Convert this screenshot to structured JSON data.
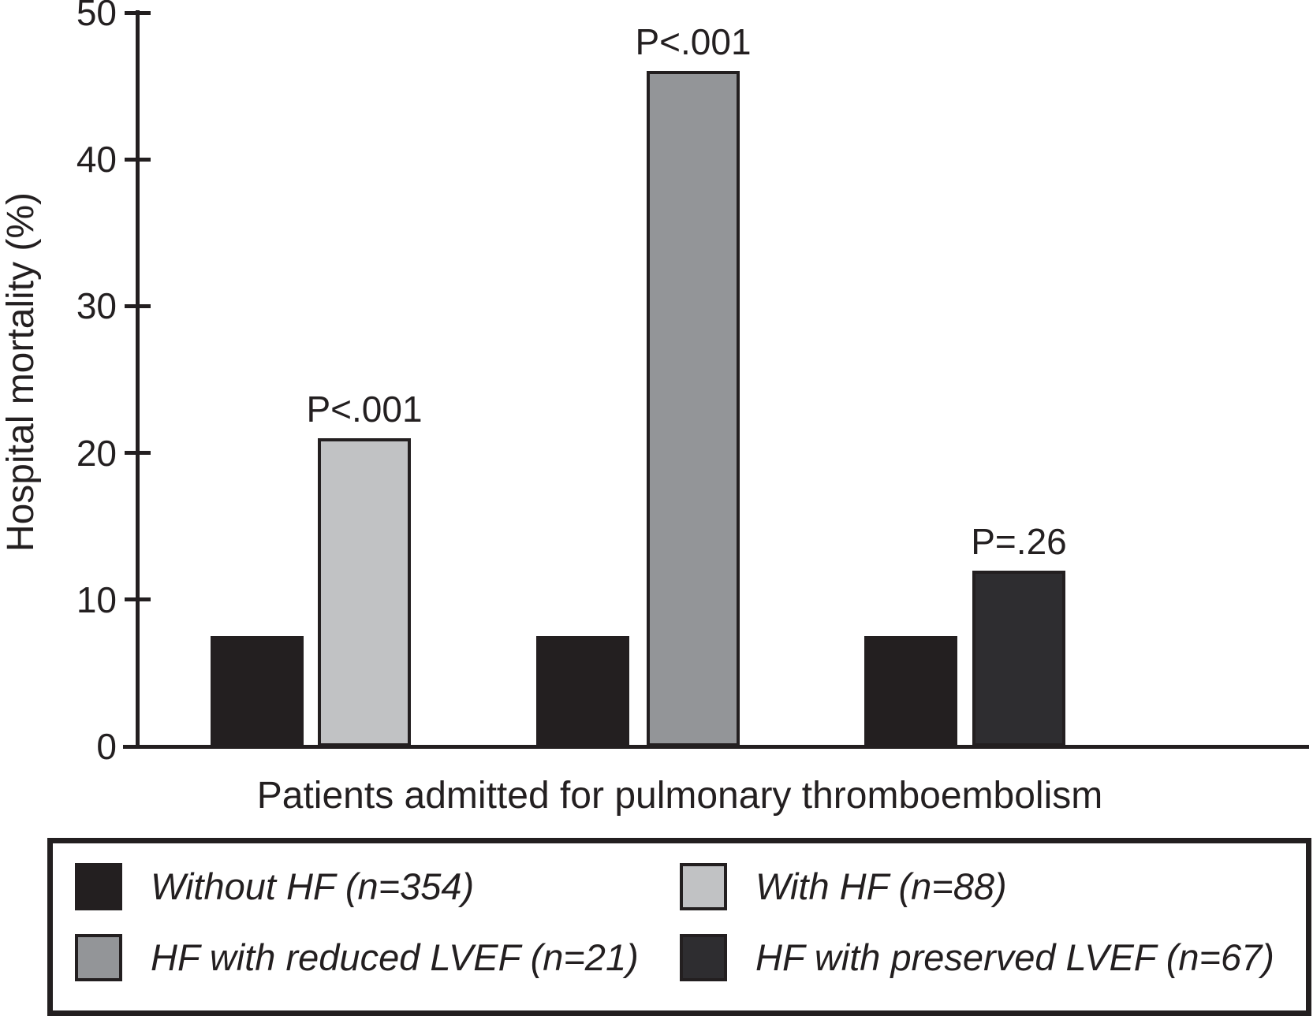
{
  "chart_data": {
    "type": "bar",
    "title": "",
    "xlabel": "Patients admitted for pulmonary thromboembolism",
    "ylabel": "Hospital mortality (%)",
    "ylim": [
      0,
      50
    ],
    "yticks": [
      0,
      10,
      20,
      30,
      40,
      50
    ],
    "grid": false,
    "legend_position": "bottom-box",
    "series": [
      {
        "name": "Without HF (n=354)",
        "color": "#231f20"
      },
      {
        "name": "With HF (n=88)",
        "color": "#c1c2c4"
      },
      {
        "name": "HF with reduced LVEF (n=21)",
        "color": "#939598"
      },
      {
        "name": "HF with preserved LVEF (n=67)",
        "color": "#2e2d30"
      }
    ],
    "groups": [
      {
        "p_label": "P<.001",
        "bars": [
          {
            "series": "Without HF (n=354)",
            "value": 7.5
          },
          {
            "series": "With HF (n=88)",
            "value": 21
          }
        ]
      },
      {
        "p_label": "P<.001",
        "bars": [
          {
            "series": "Without HF (n=354)",
            "value": 7.5
          },
          {
            "series": "HF with reduced LVEF (n=21)",
            "value": 46
          }
        ]
      },
      {
        "p_label": "P=.26",
        "bars": [
          {
            "series": "Without HF (n=354)",
            "value": 7.5
          },
          {
            "series": "HF with preserved LVEF (n=67)",
            "value": 12
          }
        ]
      }
    ],
    "annotations": [
      "P<.001",
      "P<.001",
      "P=.26"
    ]
  },
  "legend": {
    "entries": [
      {
        "label": "Without HF (n=354)",
        "color": "#231f20"
      },
      {
        "label": "With HF (n=88)",
        "color": "#c1c2c4"
      },
      {
        "label": "HF with reduced LVEF (n=21)",
        "color": "#939598"
      },
      {
        "label": "HF with preserved LVEF (n=67)",
        "color": "#2e2d30"
      }
    ]
  },
  "colors": {
    "ink": "#231f20",
    "background": "#ffffff"
  }
}
